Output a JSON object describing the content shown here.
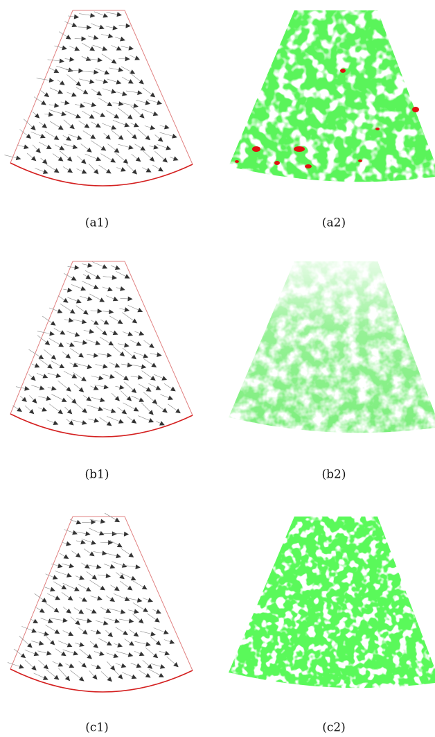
{
  "panels": [
    {
      "label": "(a1)"
    },
    {
      "label": "(a2)"
    },
    {
      "label": "(b1)"
    },
    {
      "label": "(b2)"
    },
    {
      "label": "(c1)"
    },
    {
      "label": "(c2)"
    }
  ]
}
